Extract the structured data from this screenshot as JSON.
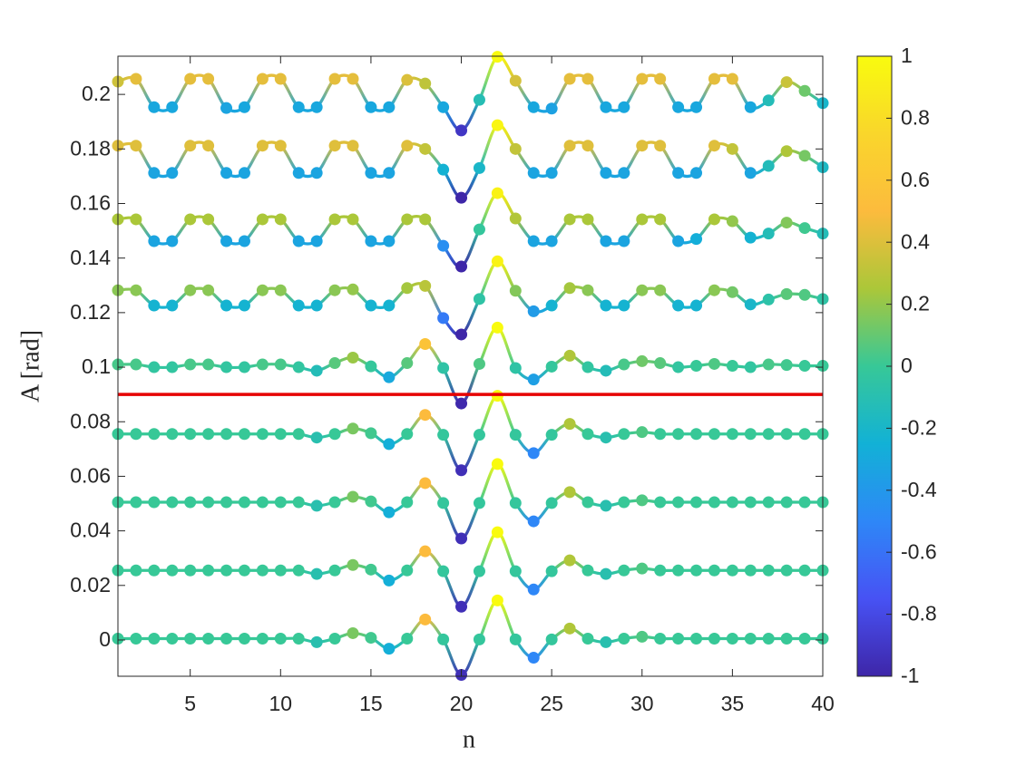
{
  "chart_data": {
    "type": "line",
    "xlabel": "n",
    "ylabel": "A [rad]",
    "x": [
      1,
      2,
      3,
      4,
      5,
      6,
      7,
      8,
      9,
      10,
      11,
      12,
      13,
      14,
      15,
      16,
      17,
      18,
      19,
      20,
      21,
      22,
      23,
      24,
      25,
      26,
      27,
      28,
      29,
      30,
      31,
      32,
      33,
      34,
      35,
      36,
      37,
      38,
      39,
      40
    ],
    "xlim": [
      1,
      40
    ],
    "xticks": [
      5,
      10,
      15,
      20,
      25,
      30,
      35,
      40
    ],
    "ylim": [
      -0.0133,
      0.214
    ],
    "yticks": [
      0,
      0.02,
      0.04,
      0.06,
      0.08,
      0.1,
      0.12,
      0.14,
      0.16,
      0.18,
      0.2
    ],
    "colormap": "parula",
    "colorbar": {
      "lim": [
        -1,
        1
      ],
      "ticks": [
        -1,
        -0.8,
        -0.6,
        -0.4,
        -0.2,
        0,
        0.2,
        0.4,
        0.6,
        0.8,
        1
      ]
    },
    "reference_line": {
      "value": 0.09,
      "color": "#e60000"
    },
    "series": [
      {
        "values": [
          0.0005,
          0.0005,
          0.0005,
          0.0005,
          0.0005,
          0.0005,
          0.0005,
          0.0005,
          0.0005,
          0.0005,
          0.0005,
          -0.0008,
          0.0005,
          0.0025,
          0.0008,
          -0.0032,
          0.0005,
          0.0075,
          0.0002,
          -0.0128,
          0.0002,
          0.0145,
          0.0002,
          -0.0065,
          0.0002,
          0.0042,
          0.0005,
          -0.0008,
          0.0005,
          0.0012,
          0.0005,
          0.0005,
          0.0005,
          0.0005,
          0.0005,
          0.0005,
          0.0005,
          0.0005,
          0.0005,
          0.0005
        ]
      },
      {
        "values": [
          0.0255,
          0.0255,
          0.0255,
          0.0255,
          0.0255,
          0.0255,
          0.0255,
          0.0255,
          0.0255,
          0.0255,
          0.0255,
          0.0242,
          0.0255,
          0.0275,
          0.0258,
          0.0218,
          0.0255,
          0.0325,
          0.0252,
          0.0122,
          0.0252,
          0.0395,
          0.0252,
          0.0185,
          0.0252,
          0.0292,
          0.0255,
          0.0242,
          0.0255,
          0.0262,
          0.0255,
          0.0255,
          0.0255,
          0.0255,
          0.0255,
          0.0255,
          0.0255,
          0.0255,
          0.0255,
          0.0255
        ]
      },
      {
        "values": [
          0.0505,
          0.0505,
          0.0505,
          0.0505,
          0.0505,
          0.0505,
          0.0505,
          0.0505,
          0.0505,
          0.0505,
          0.0505,
          0.0492,
          0.0505,
          0.0525,
          0.0508,
          0.0468,
          0.0505,
          0.0575,
          0.0502,
          0.0372,
          0.0502,
          0.0645,
          0.0502,
          0.0435,
          0.0502,
          0.0542,
          0.0505,
          0.0492,
          0.0505,
          0.0512,
          0.0505,
          0.0505,
          0.0505,
          0.0505,
          0.0505,
          0.0505,
          0.0505,
          0.0505,
          0.0505,
          0.0505
        ]
      },
      {
        "values": [
          0.0755,
          0.0755,
          0.0755,
          0.0755,
          0.0755,
          0.0755,
          0.0755,
          0.0755,
          0.0755,
          0.0755,
          0.0755,
          0.0742,
          0.0755,
          0.0775,
          0.0758,
          0.0718,
          0.0755,
          0.0825,
          0.0752,
          0.0622,
          0.0752,
          0.0895,
          0.0752,
          0.0685,
          0.0752,
          0.0792,
          0.0755,
          0.0742,
          0.0755,
          0.0762,
          0.0755,
          0.0755,
          0.0755,
          0.0755,
          0.0755,
          0.0755,
          0.0755,
          0.0755,
          0.0755,
          0.0755
        ]
      },
      {
        "values": [
          0.101,
          0.101,
          0.1,
          0.1,
          0.101,
          0.101,
          0.1,
          0.1,
          0.101,
          0.101,
          0.1,
          0.0987,
          0.1015,
          0.1035,
          0.1003,
          0.0963,
          0.1015,
          0.1085,
          0.0997,
          0.0867,
          0.1012,
          0.1145,
          0.0997,
          0.0955,
          0.1002,
          0.1042,
          0.1,
          0.0987,
          0.101,
          0.1022,
          0.1015,
          0.1,
          0.1005,
          0.1012,
          0.1005,
          0.1,
          0.101,
          0.1008,
          0.1005,
          0.1005
        ]
      },
      {
        "values": [
          0.1282,
          0.1282,
          0.1226,
          0.1226,
          0.1282,
          0.1282,
          0.1226,
          0.1226,
          0.1282,
          0.1282,
          0.1226,
          0.1226,
          0.1282,
          0.1285,
          0.1226,
          0.1226,
          0.129,
          0.1298,
          0.118,
          0.112,
          0.125,
          0.1388,
          0.128,
          0.1205,
          0.1226,
          0.129,
          0.1282,
          0.1226,
          0.1226,
          0.1282,
          0.1282,
          0.1226,
          0.1226,
          0.1282,
          0.1275,
          0.123,
          0.1248,
          0.1268,
          0.1265,
          0.125
        ]
      },
      {
        "values": [
          0.1542,
          0.1542,
          0.1462,
          0.1462,
          0.1542,
          0.1542,
          0.1462,
          0.1462,
          0.1542,
          0.1542,
          0.1462,
          0.1462,
          0.1542,
          0.1542,
          0.1462,
          0.1462,
          0.1542,
          0.1542,
          0.1445,
          0.1369,
          0.1505,
          0.1638,
          0.1545,
          0.1462,
          0.1462,
          0.1542,
          0.1542,
          0.1462,
          0.1462,
          0.1542,
          0.1542,
          0.1462,
          0.147,
          0.1542,
          0.1535,
          0.1475,
          0.149,
          0.153,
          0.151,
          0.149
        ]
      },
      {
        "values": [
          0.1812,
          0.1812,
          0.1712,
          0.1712,
          0.1812,
          0.1812,
          0.1712,
          0.1712,
          0.1812,
          0.1812,
          0.1712,
          0.1712,
          0.1812,
          0.1812,
          0.1712,
          0.1712,
          0.1812,
          0.18,
          0.1724,
          0.1621,
          0.173,
          0.1887,
          0.18,
          0.1712,
          0.1712,
          0.1812,
          0.1812,
          0.1712,
          0.1712,
          0.1812,
          0.1812,
          0.1712,
          0.1712,
          0.1812,
          0.18,
          0.1712,
          0.1738,
          0.1792,
          0.1775,
          0.1733
        ]
      },
      {
        "values": [
          0.2047,
          0.2057,
          0.1953,
          0.1953,
          0.2057,
          0.2057,
          0.195,
          0.1953,
          0.2057,
          0.2057,
          0.1953,
          0.1953,
          0.2057,
          0.2057,
          0.1953,
          0.1953,
          0.2053,
          0.204,
          0.1953,
          0.1868,
          0.198,
          0.2138,
          0.205,
          0.1953,
          0.1948,
          0.2057,
          0.2057,
          0.1953,
          0.1953,
          0.2057,
          0.2057,
          0.1953,
          0.1953,
          0.2057,
          0.2057,
          0.1953,
          0.1978,
          0.2045,
          0.2013,
          0.1968
        ]
      }
    ]
  }
}
